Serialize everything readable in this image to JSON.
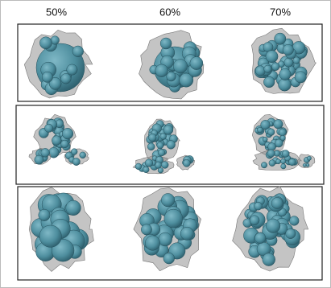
{
  "columns": [
    "50%",
    "60%",
    "70%"
  ]
}
